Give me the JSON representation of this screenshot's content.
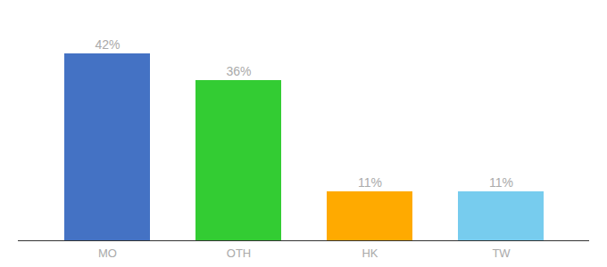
{
  "chart_data": {
    "type": "bar",
    "categories": [
      "MO",
      "OTH",
      "HK",
      "TW"
    ],
    "values": [
      42,
      36,
      11,
      11
    ],
    "value_labels": [
      "42%",
      "36%",
      "11%",
      "11%"
    ],
    "colors": [
      "#4472c4",
      "#33cc33",
      "#ffaa00",
      "#77ccee"
    ],
    "ylim": [
      0,
      48
    ],
    "data_labels": true,
    "tick_labels": "x",
    "grid": false
  }
}
